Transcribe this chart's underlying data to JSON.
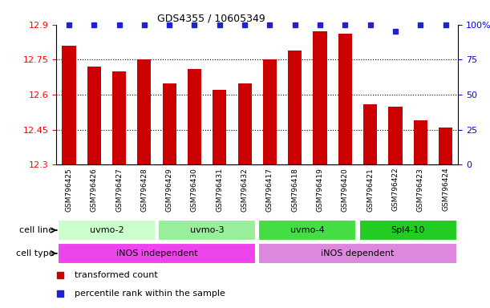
{
  "title": "GDS4355 / 10605349",
  "samples": [
    "GSM796425",
    "GSM796426",
    "GSM796427",
    "GSM796428",
    "GSM796429",
    "GSM796430",
    "GSM796431",
    "GSM796432",
    "GSM796417",
    "GSM796418",
    "GSM796419",
    "GSM796420",
    "GSM796421",
    "GSM796422",
    "GSM796423",
    "GSM796424"
  ],
  "bar_values": [
    12.81,
    12.72,
    12.7,
    12.75,
    12.65,
    12.71,
    12.62,
    12.65,
    12.75,
    12.79,
    12.87,
    12.86,
    12.56,
    12.55,
    12.49,
    12.46
  ],
  "percentile_values": [
    100,
    100,
    100,
    100,
    100,
    100,
    100,
    100,
    100,
    100,
    100,
    100,
    100,
    95,
    100,
    100
  ],
  "bar_color": "#CC0000",
  "dot_color": "#2222CC",
  "ylim_left": [
    12.3,
    12.9
  ],
  "ylim_right": [
    0,
    100
  ],
  "yticks_left": [
    12.3,
    12.45,
    12.6,
    12.75,
    12.9
  ],
  "yticks_right": [
    0,
    25,
    50,
    75,
    100
  ],
  "ytick_labels_left": [
    "12.3",
    "12.45",
    "12.6",
    "12.75",
    "12.9"
  ],
  "ytick_labels_right": [
    "0",
    "25",
    "50",
    "75",
    "100%"
  ],
  "cell_lines": [
    {
      "label": "uvmo-2",
      "start": 0,
      "end": 3,
      "color": "#ccffcc"
    },
    {
      "label": "uvmo-3",
      "start": 4,
      "end": 7,
      "color": "#99ee99"
    },
    {
      "label": "uvmo-4",
      "start": 8,
      "end": 11,
      "color": "#44dd44"
    },
    {
      "label": "Spl4-10",
      "start": 12,
      "end": 15,
      "color": "#22cc22"
    }
  ],
  "cell_types": [
    {
      "label": "iNOS independent",
      "start": 0,
      "end": 7,
      "color": "#ee44ee"
    },
    {
      "label": "iNOS dependent",
      "start": 8,
      "end": 15,
      "color": "#dd88dd"
    }
  ],
  "legend_red_label": "transformed count",
  "legend_blue_label": "percentile rank within the sample",
  "cell_line_label": "cell line",
  "cell_type_label": "cell type",
  "bg_color": "#dddddd"
}
